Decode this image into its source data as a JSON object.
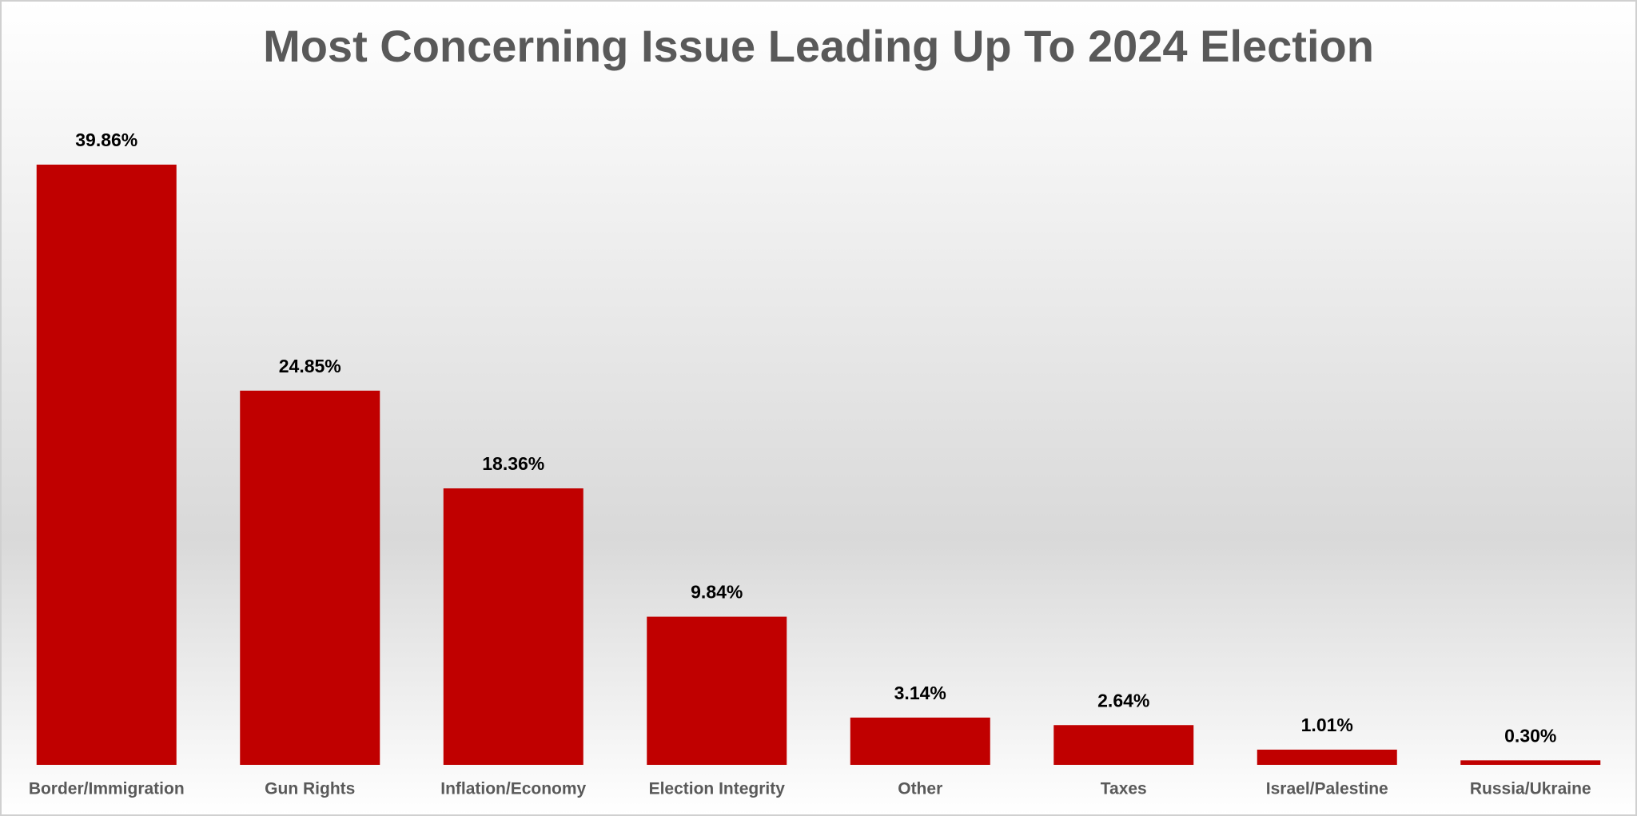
{
  "chart_data": {
    "type": "bar",
    "title": "Most Concerning Issue Leading Up To 2024 Election",
    "categories": [
      "Border/Immigration",
      "Gun Rights",
      "Inflation/Economy",
      "Election Integrity",
      "Other",
      "Taxes",
      "Israel/Palestine",
      "Russia/Ukraine"
    ],
    "values": [
      39.86,
      24.85,
      18.36,
      9.84,
      3.14,
      2.64,
      1.01,
      0.3
    ],
    "value_labels": [
      "39.86%",
      "24.85%",
      "18.36%",
      "9.84%",
      "3.14%",
      "2.64%",
      "1.01%",
      "0.30%"
    ],
    "color": "#c00000"
  }
}
